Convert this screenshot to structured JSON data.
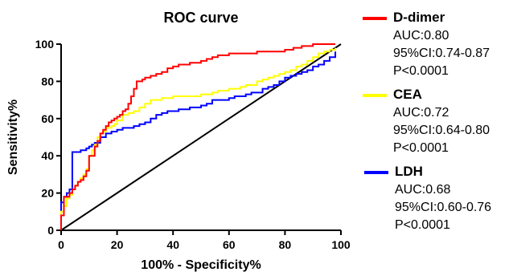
{
  "chart_data": {
    "type": "line",
    "title": "ROC curve",
    "xlabel": "100% - Specificity%",
    "ylabel": "Sensitivity%",
    "xlim": [
      0,
      100
    ],
    "ylim": [
      0,
      100
    ],
    "xticks": [
      "0",
      "20",
      "40",
      "60",
      "80",
      "100"
    ],
    "yticks": [
      "0",
      "20",
      "40",
      "60",
      "80",
      "100"
    ],
    "grid": false,
    "legend_position": "right",
    "reference_line": {
      "x": [
        0,
        100
      ],
      "y": [
        0,
        100
      ],
      "color": "#000000"
    },
    "series": [
      {
        "name": "D-dimer",
        "color": "#ff0000",
        "auc": "AUC:0.80",
        "ci": "95%CI:0.74-0.87",
        "p": "P<0.0001",
        "x": [
          0,
          0,
          1,
          1,
          3,
          4,
          5,
          6,
          7,
          8,
          9,
          10,
          10,
          12,
          13,
          14,
          15,
          16,
          17,
          18,
          19,
          20,
          21,
          22,
          23,
          24,
          25,
          26,
          27,
          29,
          30,
          32,
          34,
          36,
          38,
          40,
          42,
          44,
          46,
          48,
          50,
          52,
          54,
          56,
          58,
          60,
          63,
          66,
          70,
          74,
          78,
          80,
          83,
          86,
          90,
          94,
          98
        ],
        "y": [
          0,
          8,
          13,
          18,
          20,
          22,
          24,
          26,
          27,
          29,
          32,
          34,
          40,
          45,
          48,
          52,
          54,
          56,
          58,
          59,
          60,
          61,
          62,
          64,
          65,
          68,
          72,
          76,
          80,
          81,
          82,
          83,
          84,
          85,
          87,
          88,
          89,
          89,
          90,
          90,
          91,
          92,
          93,
          94,
          94,
          95,
          95,
          95,
          96,
          96,
          96,
          97,
          98,
          99,
          100,
          100,
          100
        ]
      },
      {
        "name": "CEA",
        "color": "#ffff00",
        "auc": "AUC:0.72",
        "ci": "95%CI:0.64-0.80",
        "p": "P<0.0001",
        "x": [
          0,
          0,
          1,
          2,
          3,
          4,
          5,
          6,
          7,
          8,
          9,
          10,
          10,
          11,
          12,
          13,
          14,
          15,
          16,
          18,
          19,
          20,
          22,
          24,
          26,
          28,
          30,
          32,
          34,
          36,
          38,
          40,
          42,
          44,
          46,
          48,
          50,
          52,
          54,
          56,
          58,
          60,
          62,
          64,
          66,
          68,
          70,
          72,
          74,
          76,
          78,
          80,
          82,
          84,
          86,
          88,
          90,
          92,
          94,
          96,
          98
        ],
        "y": [
          0,
          10,
          13,
          17,
          19,
          22,
          24,
          26,
          28,
          30,
          33,
          36,
          40,
          43,
          46,
          50,
          52,
          53,
          55,
          56,
          57,
          59,
          62,
          63,
          64,
          66,
          68,
          70,
          70,
          71,
          71,
          72,
          72,
          72,
          72,
          72,
          73,
          73,
          74,
          75,
          75,
          76,
          76,
          77,
          78,
          78,
          80,
          81,
          82,
          83,
          84,
          85,
          86,
          88,
          89,
          91,
          93,
          95,
          96,
          97,
          98
        ]
      },
      {
        "name": "LDH",
        "color": "#0000ff",
        "auc": "AUC:0.68",
        "ci": "95%CI:0.60-0.76",
        "p": "P<0.0001",
        "x": [
          0,
          0,
          1,
          2,
          3,
          4,
          4,
          5,
          6,
          7,
          8,
          9,
          10,
          11,
          12,
          14,
          16,
          18,
          20,
          22,
          24,
          26,
          28,
          30,
          32,
          34,
          36,
          38,
          40,
          42,
          44,
          46,
          48,
          50,
          52,
          54,
          56,
          58,
          60,
          62,
          64,
          66,
          68,
          70,
          72,
          74,
          76,
          78,
          80,
          82,
          84,
          86,
          88,
          90,
          92,
          94,
          96,
          98
        ],
        "y": [
          0,
          15,
          18,
          20,
          22,
          24,
          42,
          42,
          42,
          43,
          43,
          44,
          45,
          46,
          47,
          50,
          52,
          53,
          54,
          55,
          55,
          56,
          57,
          58,
          60,
          62,
          63,
          64,
          64,
          65,
          65,
          66,
          66,
          67,
          68,
          70,
          70,
          70,
          71,
          72,
          72,
          73,
          74,
          74,
          76,
          77,
          78,
          80,
          82,
          83,
          84,
          85,
          86,
          88,
          89,
          91,
          93,
          96
        ]
      }
    ]
  }
}
